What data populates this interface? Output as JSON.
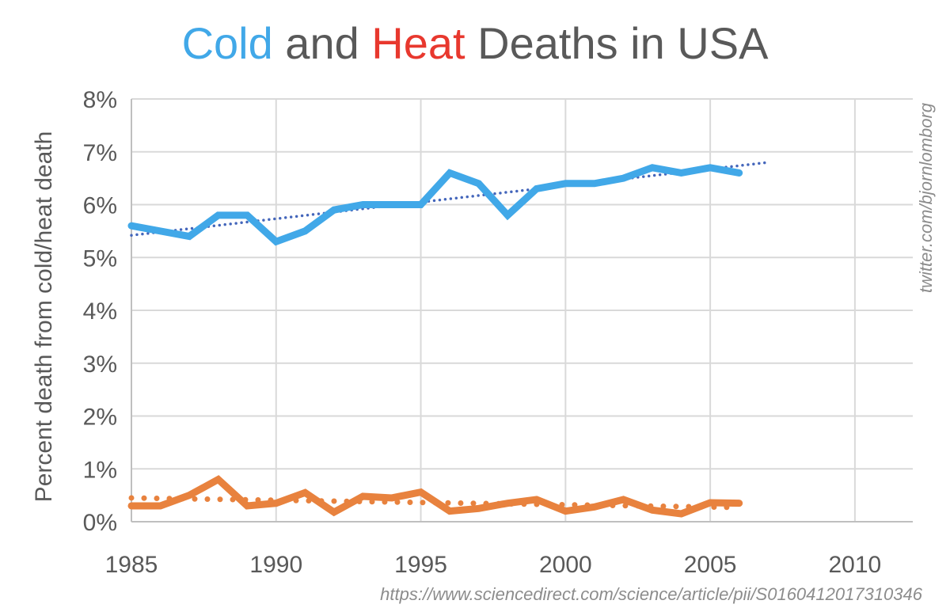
{
  "chart_data": {
    "type": "line",
    "title": {
      "cold": "Cold",
      "mid": " and ",
      "heat": "Heat",
      "rest": " Deaths in USA"
    },
    "ylabel": "Percent death from cold/heat death",
    "xlim": [
      1985,
      2012
    ],
    "ylim": [
      0,
      8
    ],
    "xticks": [
      1985,
      1990,
      1995,
      2000,
      2005,
      2010
    ],
    "yticks": [
      0,
      1,
      2,
      3,
      4,
      5,
      6,
      7,
      8
    ],
    "ytick_labels": [
      "0%",
      "1%",
      "2%",
      "3%",
      "4%",
      "5%",
      "6%",
      "7%",
      "8%"
    ],
    "grid": true,
    "x": [
      1985,
      1986,
      1987,
      1988,
      1989,
      1990,
      1991,
      1992,
      1993,
      1994,
      1995,
      1996,
      1997,
      1998,
      1999,
      2000,
      2001,
      2002,
      2003,
      2004,
      2005,
      2006
    ],
    "series": [
      {
        "name": "Cold",
        "color": "#41a8e8",
        "values": [
          5.6,
          5.5,
          5.4,
          5.8,
          5.8,
          5.3,
          5.5,
          5.9,
          6.0,
          6.0,
          6.0,
          6.6,
          6.4,
          5.8,
          6.3,
          6.4,
          6.4,
          6.5,
          6.7,
          6.6,
          6.7,
          6.6
        ],
        "trend": {
          "color": "#4466bb",
          "x": [
            1985,
            2007
          ],
          "y": [
            5.42,
            6.8
          ]
        }
      },
      {
        "name": "Heat",
        "color": "#e8823e",
        "values": [
          0.3,
          0.3,
          0.5,
          0.8,
          0.3,
          0.35,
          0.55,
          0.18,
          0.48,
          0.45,
          0.56,
          0.2,
          0.25,
          0.35,
          0.42,
          0.2,
          0.28,
          0.42,
          0.22,
          0.15,
          0.36,
          0.35
        ],
        "trend": {
          "color": "#e8823e",
          "x": [
            1985,
            2006
          ],
          "y": [
            0.45,
            0.27
          ]
        }
      }
    ]
  },
  "watermark": "twitter.com/bjornlomborg",
  "source": "https://www.sciencedirect.com/science/article/pii/S0160412017310346"
}
